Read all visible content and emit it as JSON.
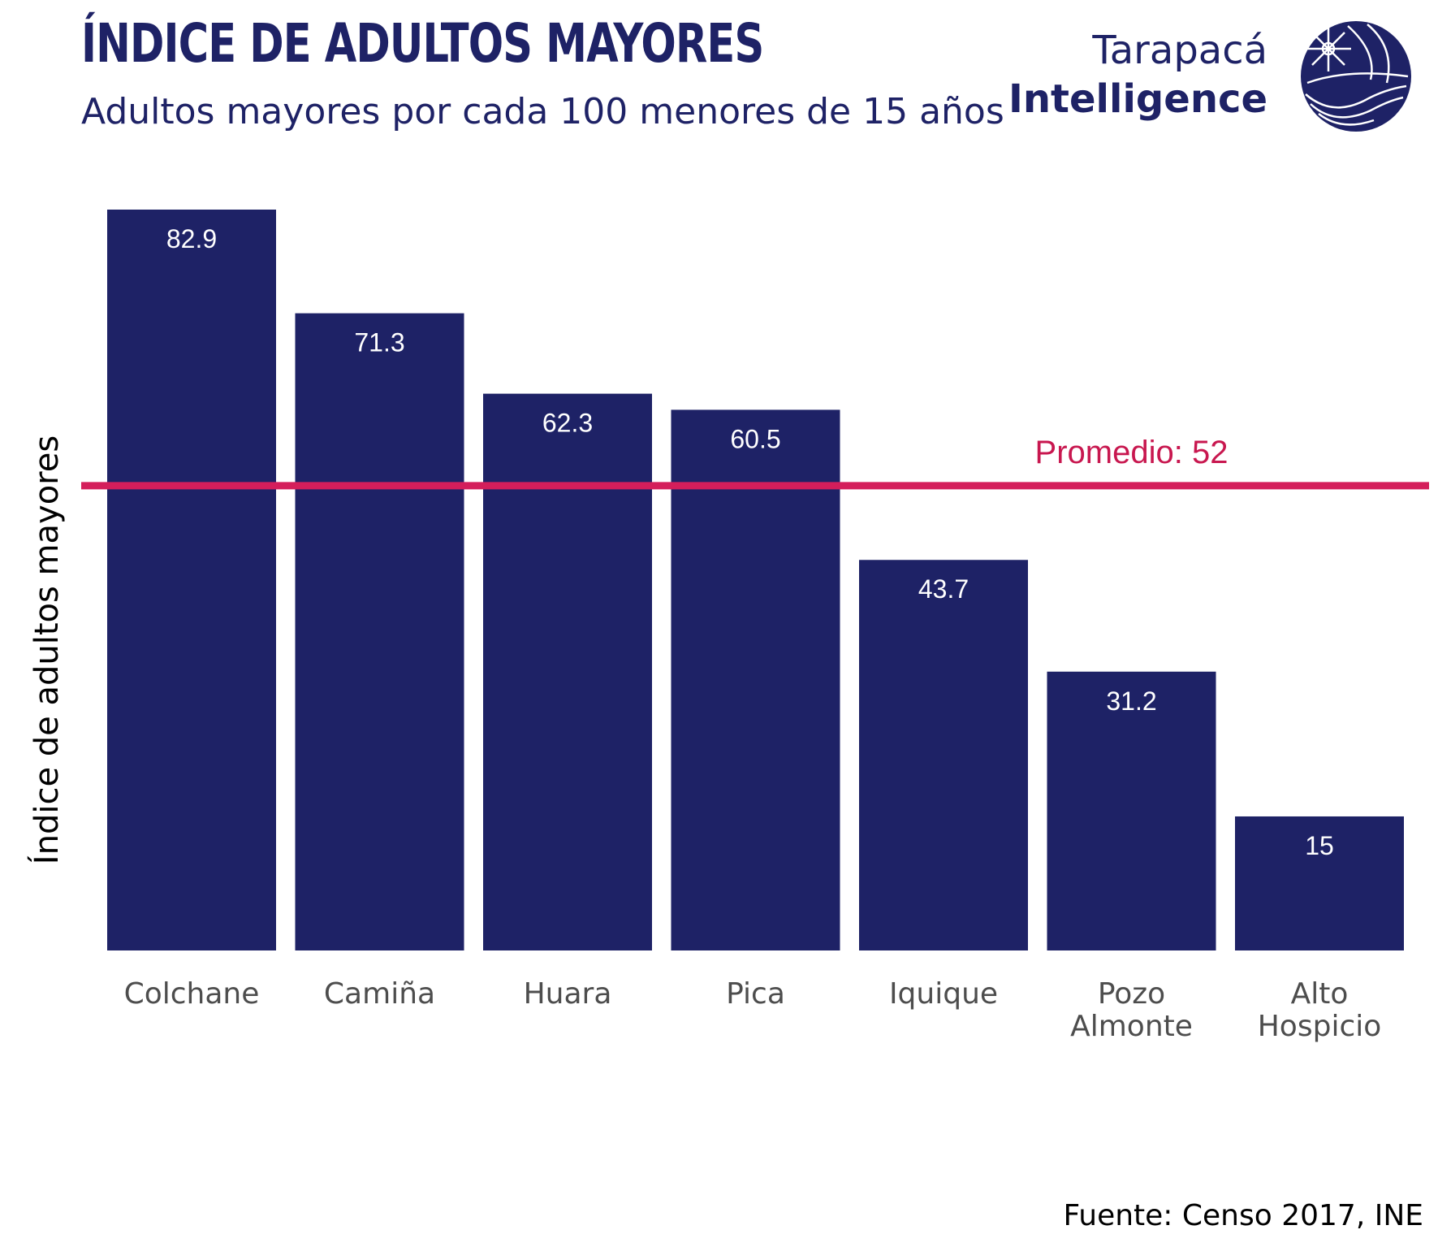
{
  "header": {
    "title": "ÍNDICE DE ADULTOS MAYORES",
    "subtitle": "Adultos mayores por cada 100 menores de 15 años"
  },
  "brand": {
    "line1": "Tarapacá",
    "line2": "Intelligence",
    "logo_icon": "compass-globe-logo"
  },
  "source": "Fuente: Censo 2017, INE",
  "colors": {
    "bar": "#1e2266",
    "average_line": "#d41e5b",
    "average_text": "#c8174f",
    "text_primary": "#1e2266"
  },
  "chart_data": {
    "type": "bar",
    "title": "ÍNDICE DE ADULTOS MAYORES",
    "subtitle": "Adultos mayores por cada 100 menores de 15 años",
    "xlabel": "",
    "ylabel": "Índice de adultos mayores",
    "categories": [
      "Colchane",
      "Camiña",
      "Huara",
      "Pica",
      "Iquique",
      "Pozo Almonte",
      "Alto Hospicio"
    ],
    "category_lines": [
      [
        "Colchane"
      ],
      [
        "Camiña"
      ],
      [
        "Huara"
      ],
      [
        "Pica"
      ],
      [
        "Iquique"
      ],
      [
        "Pozo",
        "Almonte"
      ],
      [
        "Alto",
        "Hospicio"
      ]
    ],
    "values": [
      82.9,
      71.3,
      62.3,
      60.5,
      43.7,
      31.2,
      15
    ],
    "value_labels": [
      "82.9",
      "71.3",
      "62.3",
      "60.5",
      "43.7",
      "31.2",
      "15"
    ],
    "average": {
      "value": 52,
      "label": "Promedio: 52"
    },
    "ylim": [
      0,
      82.9
    ],
    "grid": false,
    "legend": "none"
  }
}
